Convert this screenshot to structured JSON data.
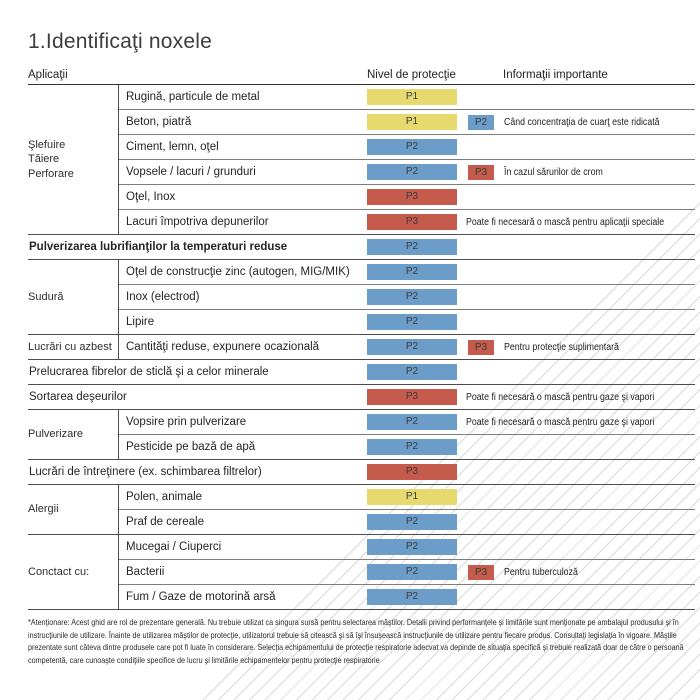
{
  "title": "1.Identificaţi noxele",
  "header": {
    "applications": "Aplicaţii",
    "protection_level": "Nivel de protecţie",
    "important_info": "Informaţii importante"
  },
  "colors": {
    "P1": "#e6da6e",
    "P2": "#6c9cc8",
    "P3": "#c45b4d"
  },
  "sections": [
    {
      "group": [
        "Şlefuire",
        "Tăiere",
        "Perforare"
      ],
      "rows": [
        {
          "label": "Rugină, particule de metal",
          "level": "P1"
        },
        {
          "label": "Beton, piatră",
          "level": "P1",
          "badge": "P2",
          "note": "Când concentraţia de cuarţ este ridicată"
        },
        {
          "label": "Ciment, lemn, oţel",
          "level": "P2"
        },
        {
          "label": "Vopsele / lacuri / grunduri",
          "level": "P2",
          "badge": "P3",
          "note": "În cazul sărurilor de crom"
        },
        {
          "label": "Oţel, Inox",
          "level": "P3"
        },
        {
          "label": "Lacuri împotriva depunerilor",
          "level": "P3",
          "note": "Poate fi necesară o mască pentru aplicaţii speciale"
        }
      ]
    },
    {
      "group": null,
      "rows": [
        {
          "label": "Pulverizarea lubrifianţilor la temperaturi reduse",
          "level": "P2",
          "bold": true
        }
      ]
    },
    {
      "group": [
        "Sudură"
      ],
      "rows": [
        {
          "label": "Oţel de construcţie zinc (autogen, MIG/MIK)",
          "level": "P2"
        },
        {
          "label": "Inox (electrod)",
          "level": "P2"
        },
        {
          "label": "Lipire",
          "level": "P2"
        }
      ]
    },
    {
      "group": [
        "Lucrări cu azbest"
      ],
      "rows": [
        {
          "label": "Cantităţi reduse, expunere ocazională",
          "level": "P2",
          "badge": "P3",
          "note": "Pentru protecţie suplimentară"
        }
      ]
    },
    {
      "group": null,
      "rows": [
        {
          "label": "Prelucrarea fibrelor de sticlă şi a celor minerale",
          "level": "P2"
        }
      ]
    },
    {
      "group": null,
      "rows": [
        {
          "label": "Sortarea deşeurilor",
          "level": "P3",
          "note": "Poate fi necesară o mască pentru gaze şi vapori"
        }
      ]
    },
    {
      "group": [
        "Pulverizare"
      ],
      "rows": [
        {
          "label": "Vopsire prin pulverizare",
          "level": "P2",
          "note": "Poate fi necesară o mască pentru gaze şi vapori"
        },
        {
          "label": "Pesticide pe bază de apă",
          "level": "P2"
        }
      ]
    },
    {
      "group": null,
      "rows": [
        {
          "label": "Lucrări de întreţinere (ex. schimbarea filtrelor)",
          "level": "P3"
        }
      ]
    },
    {
      "group": [
        "Alergii"
      ],
      "rows": [
        {
          "label": "Polen, animale",
          "level": "P1"
        },
        {
          "label": "Praf de cereale",
          "level": "P2"
        }
      ]
    },
    {
      "group": [
        "Conctact cu:"
      ],
      "rows": [
        {
          "label": "Mucegai / Ciuperci",
          "level": "P2"
        },
        {
          "label": "Bacterii",
          "level": "P2",
          "badge": "P3",
          "note": "Pentru tuberculoză"
        },
        {
          "label": "Fum / Gaze de motorină arsă",
          "level": "P2"
        }
      ]
    }
  ],
  "footnote": "*Atenţionare: Acest ghid are rol de prezentare generală. Nu trebuie utilizat ca singura sursă pentru selectarea măştilor. Detalii privind performanţele şi limitările sunt menţionate pe ambalajul produsului şi în instrucţiunile de utilizare. Înainte de utilizarea măştilor de protecţie, utilizatorul trebuie să citească şi să îşi însuşească instrucţiunile de utilizare pentru fiecare produs. Consultaţi legislaţia în vigoare. Măştile prezentate sunt câteva dintre produsele care pot fi luate în considerare. Selecţia echipamentului de protecţie respiratorie adecvat va depinde de situaţia specifică şi trebuie realizată doar de către o persoană competentă, care cunoaşte condiţiile specifice de lucru şi limitările echipamentelor pentru protecţie respiratorie"
}
